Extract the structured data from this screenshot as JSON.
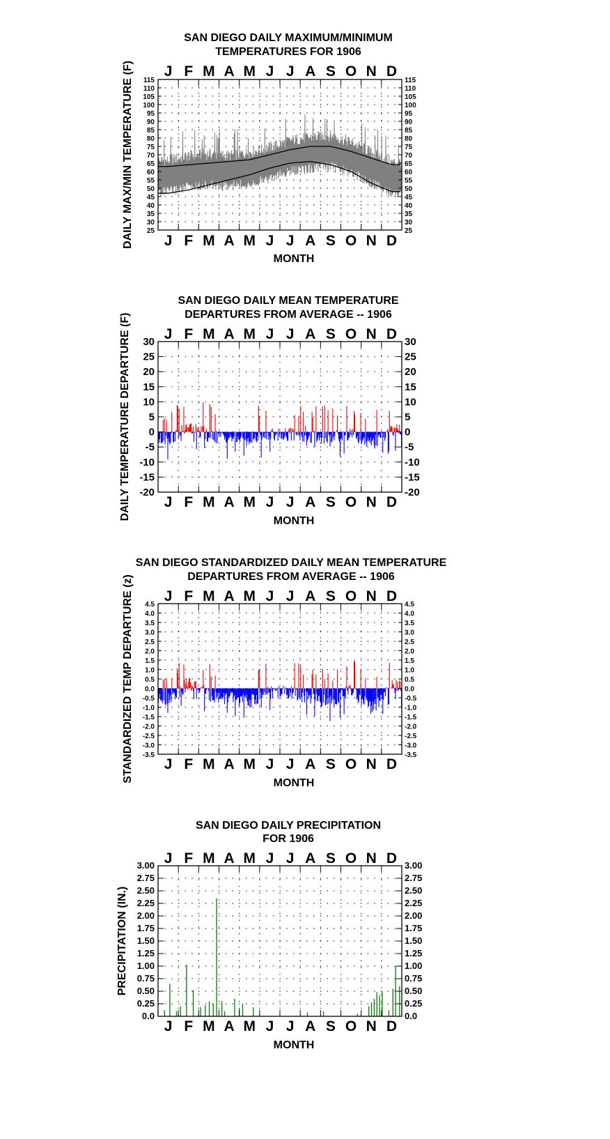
{
  "month_labels": [
    "J",
    "F",
    "M",
    "A",
    "M",
    "J",
    "J",
    "A",
    "S",
    "O",
    "N",
    "D"
  ],
  "chart_data": [
    {
      "type": "line",
      "title": [
        "SAN DIEGO DAILY MAXIMUM/MINIMUM",
        "TEMPERATURES FOR 1906"
      ],
      "xlabel": "MONTH",
      "ylabel": "DAILY MAX/MIN TEMPERATURE (F)",
      "ylim": [
        25,
        115
      ],
      "yticks": [
        25,
        30,
        35,
        40,
        45,
        50,
        55,
        60,
        65,
        70,
        75,
        80,
        85,
        90,
        95,
        100,
        105,
        110,
        115
      ],
      "ytick_labels": [
        "25",
        "30",
        "35",
        "40",
        "45",
        "50",
        "55",
        "60",
        "65",
        "70",
        "75",
        "80",
        "85",
        "90",
        "95",
        "100",
        "105",
        "110",
        "115"
      ],
      "grid": true,
      "x": [
        "Jan",
        "Feb",
        "Mar",
        "Apr",
        "May",
        "Jun",
        "Jul",
        "Aug",
        "Sep",
        "Oct",
        "Nov",
        "Dec"
      ],
      "series": [
        {
          "values": [
            63,
            64,
            65,
            66,
            67,
            70,
            73,
            75,
            75,
            72,
            68,
            64
          ],
          "color": "#000000"
        },
        {
          "values": [
            47,
            49,
            52,
            55,
            58,
            62,
            65,
            66,
            64,
            60,
            53,
            48
          ],
          "color": "#000000"
        },
        {
          "values": [
            57,
            60,
            61,
            60,
            62,
            65,
            69,
            71,
            72,
            68,
            62,
            56
          ],
          "color": "#808080"
        }
      ],
      "colors": {
        "observed": "#808080",
        "normal": "#000000"
      }
    },
    {
      "type": "bar",
      "title": [
        "SAN DIEGO DAILY MEAN TEMPERATURE",
        "DEPARTURES FROM AVERAGE -- 1906"
      ],
      "xlabel": "MONTH",
      "ylabel": "DAILY TEMPERATURE DEPARTURE (F)",
      "ylim": [
        -20,
        30
      ],
      "yticks": [
        -20,
        -15,
        -10,
        -5,
        0,
        5,
        10,
        15,
        20,
        25,
        30
      ],
      "ytick_labels": [
        "-20",
        "-15",
        "-10",
        "-5",
        "0",
        "5",
        "10",
        "15",
        "20",
        "25",
        "30"
      ],
      "grid": true,
      "x": [
        "Jan",
        "Feb",
        "Mar",
        "Apr",
        "May",
        "Jun",
        "Jul",
        "Aug",
        "Sep",
        "Oct",
        "Nov",
        "Dec"
      ],
      "values": [
        -2.5,
        1.5,
        -1.5,
        -1.8,
        -2.5,
        -0.8,
        -0.8,
        -1.8,
        -2.0,
        -0.5,
        -4.0,
        0.5
      ],
      "colors": {
        "positive": "#ff0000",
        "negative": "#0000ff"
      }
    },
    {
      "type": "bar",
      "title": [
        "SAN DIEGO STANDARDIZED DAILY MEAN TEMPERATURE",
        "DEPARTURES FROM AVERAGE -- 1906"
      ],
      "xlabel": "MONTH",
      "ylabel": "STANDARDIZED TEMP DEPARTURE (z)",
      "ylim": [
        -3.5,
        4.5
      ],
      "yticks": [
        -3.5,
        -3.0,
        -2.5,
        -2.0,
        -1.5,
        -1.0,
        -0.5,
        0.0,
        0.5,
        1.0,
        1.5,
        2.0,
        2.5,
        3.0,
        3.5,
        4.0,
        4.5
      ],
      "ytick_labels": [
        "-3.5",
        "-3.0",
        "-2.5",
        "-2.0",
        "-1.5",
        "-1.0",
        "-0.5",
        "0.0",
        "0.5",
        "1.0",
        "1.5",
        "2.0",
        "2.5",
        "3.0",
        "3.5",
        "4.0",
        "4.5"
      ],
      "grid": true,
      "x": [
        "Jan",
        "Feb",
        "Mar",
        "Apr",
        "May",
        "Jun",
        "Jul",
        "Aug",
        "Sep",
        "Oct",
        "Nov",
        "Dec"
      ],
      "values": [
        -0.6,
        0.3,
        -0.4,
        -0.5,
        -0.7,
        -0.2,
        -0.2,
        -0.6,
        -0.7,
        -0.1,
        -1.1,
        0.1
      ],
      "colors": {
        "positive": "#ff0000",
        "negative": "#0000ff"
      }
    },
    {
      "type": "bar",
      "title": [
        "SAN DIEGO DAILY PRECIPITATION",
        "FOR 1906"
      ],
      "xlabel": "MONTH",
      "ylabel": "PRECIPITATION (IN.)",
      "ylim": [
        0,
        3
      ],
      "yticks": [
        0,
        0.25,
        0.5,
        0.75,
        1,
        1.25,
        1.5,
        1.75,
        2,
        2.25,
        2.5,
        2.75,
        3
      ],
      "ytick_labels": [
        "0.0",
        "0.25",
        "0.50",
        "0.75",
        "1.00",
        "1.25",
        "1.50",
        "1.75",
        "2.00",
        "2.25",
        "2.50",
        "2.75",
        "3.00"
      ],
      "grid": true,
      "x": [
        "Jan 10",
        "Jan 18",
        "Jan 28",
        "Feb 3",
        "Feb 12",
        "Feb 22",
        "Mar 5",
        "Mar 12",
        "Mar 18",
        "Mar 24",
        "Mar 29",
        "Apr 6",
        "Apr 10",
        "Apr 25",
        "May 2",
        "May 7",
        "May 23",
        "Aug 12",
        "Sep 5",
        "Oct 26",
        "Nov 12",
        "Nov 16",
        "Nov 20",
        "Nov 24",
        "Nov 28",
        "Dec 2",
        "Dec 12",
        "Dec 18",
        "Dec 22",
        "Dec 28"
      ],
      "values": [
        0.12,
        0.65,
        0.1,
        0.2,
        1.03,
        0.52,
        0.18,
        0.22,
        0.3,
        0.25,
        2.35,
        0.3,
        0.1,
        0.35,
        0.15,
        0.25,
        0.18,
        0.08,
        0.1,
        0.05,
        0.2,
        0.28,
        0.35,
        0.48,
        0.42,
        0.5,
        0.12,
        0.55,
        1.0,
        0.6
      ],
      "colors": {
        "bar": "#008000"
      }
    }
  ]
}
